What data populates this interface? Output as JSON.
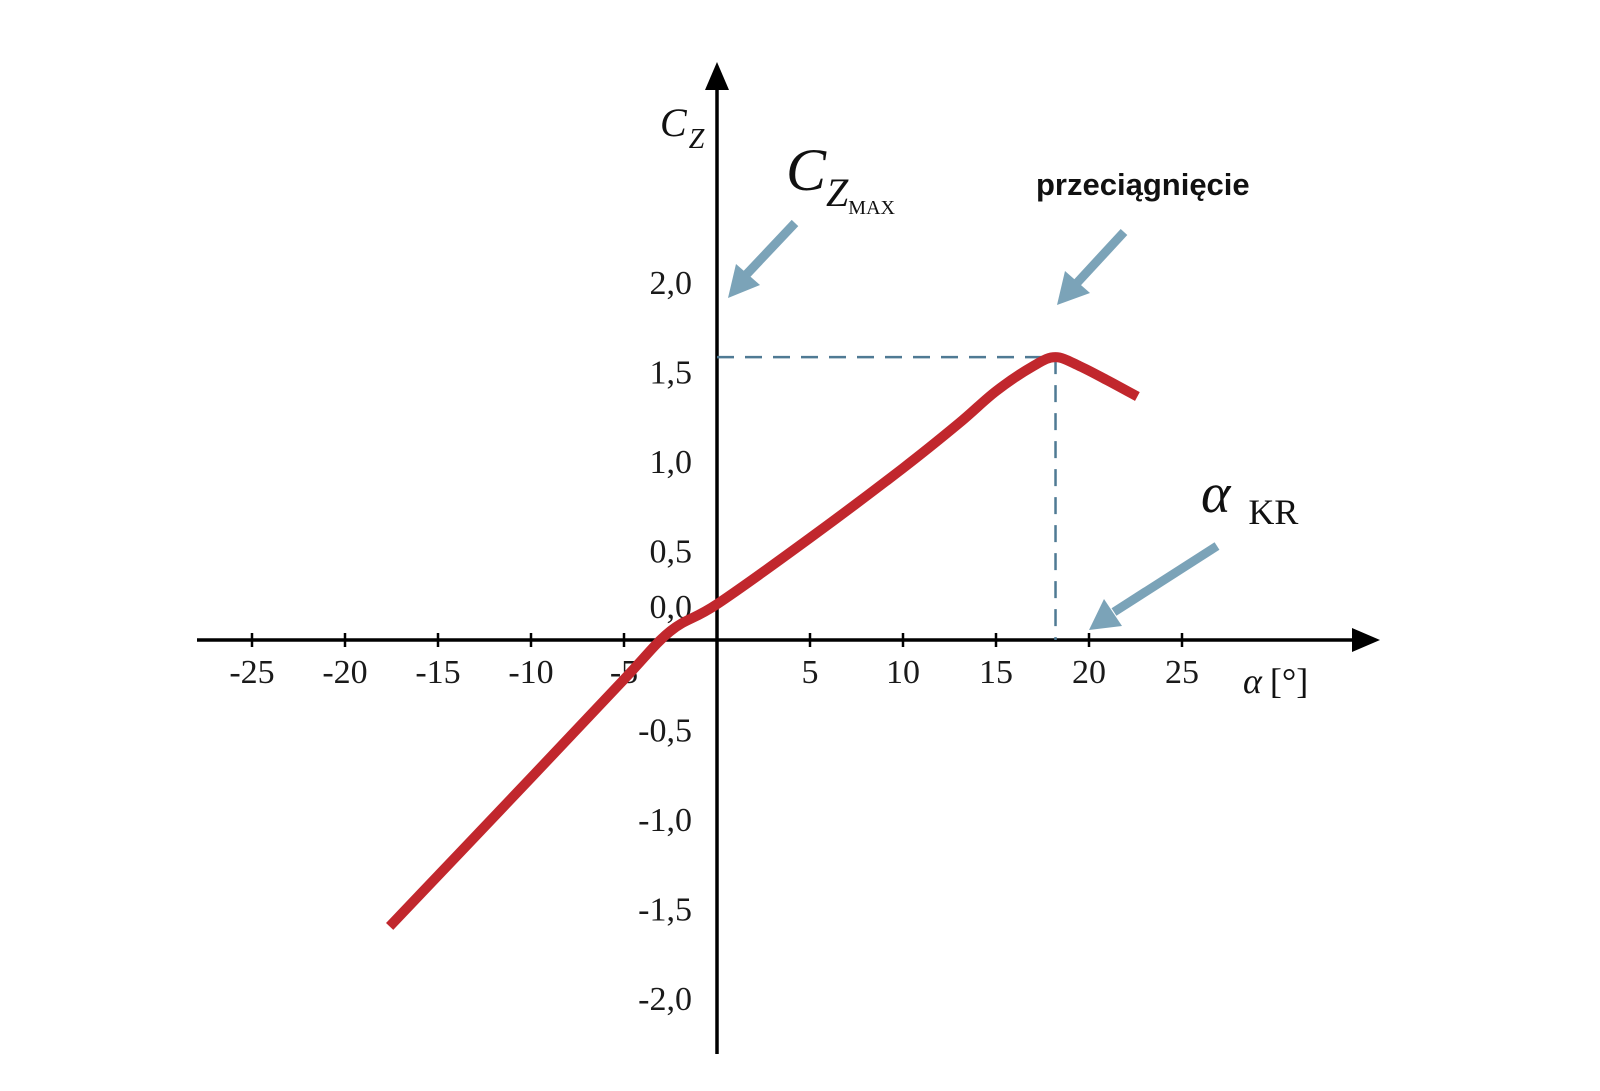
{
  "chart_data": {
    "type": "line",
    "x_axis": {
      "label_symbol": "α",
      "label_unit": "[°]",
      "range": [
        -30,
        35
      ],
      "ticks": [
        -25,
        -20,
        -15,
        -10,
        -5,
        5,
        10,
        15,
        20,
        25
      ],
      "tick_labels": [
        "-25",
        "-20",
        "-15",
        "-10",
        "-5",
        "5",
        "10",
        "15",
        "20",
        "25"
      ]
    },
    "y_axis": {
      "label_main": "C",
      "label_sub": "Z",
      "range": [
        -2.2,
        2.95
      ],
      "tick_values": [
        2.0,
        1.5,
        1.0,
        0.5,
        0.0,
        -0.5,
        -1.0,
        -1.5,
        -2.0
      ],
      "tick_labels": [
        "2,0",
        "1,5",
        "1,0",
        "0,5",
        "0,0",
        "-0,5",
        "-1,0",
        "-1,5",
        "-2,0"
      ]
    },
    "series": [
      {
        "color": "#c1272d",
        "x": [
          -17.6,
          -10,
          -5,
          -2.5,
          0,
          5,
          10,
          13,
          15,
          17,
          18.2,
          19.5,
          21,
          22.6
        ],
        "y": [
          -1.6,
          -0.77,
          -0.22,
          0.05,
          0.2,
          0.57,
          0.96,
          1.21,
          1.39,
          1.53,
          1.58,
          1.53,
          1.45,
          1.36
        ]
      }
    ],
    "annotations": {
      "cz_max": {
        "main": "C",
        "sub": "Z",
        "subsub": "MAX"
      },
      "stall": {
        "text": "przeciągnięcie"
      },
      "alpha_kr": {
        "symbol": "α",
        "sub": "KR"
      },
      "peak": {
        "x": 18.2,
        "y": 1.58
      }
    },
    "colors": {
      "curve": "#c1272d",
      "arrows": "#7ba3b8",
      "guides": "#4f7a94",
      "axes": "#000000"
    },
    "grid": false,
    "legend": "none"
  }
}
